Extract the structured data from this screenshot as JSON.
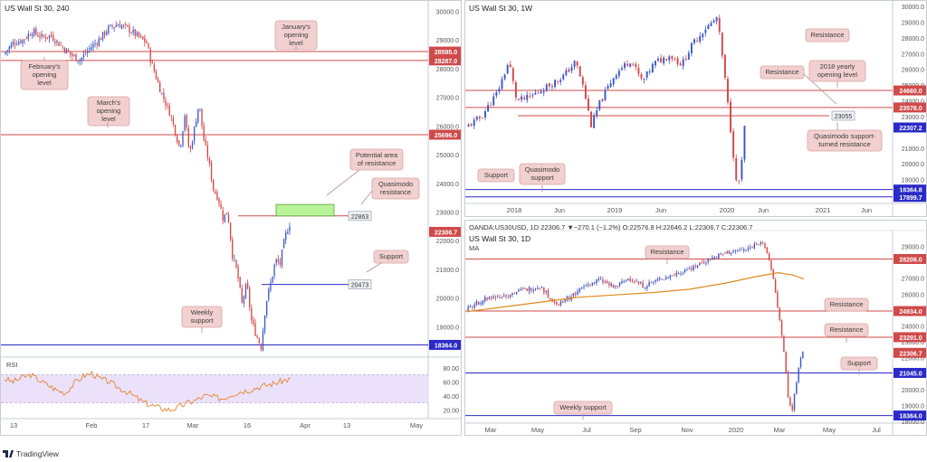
{
  "colors": {
    "candle_up": "#3a57c9",
    "candle_down": "#d64545",
    "resistance_line": "#d04a4a",
    "support_line": "#2a2ac8",
    "callout_bg": "#f2d0d0",
    "callout_border": "#d8a4a4",
    "green_zone": "#b8f39a",
    "rsi_line": "#e3852e",
    "rsi_band": "#ece1fb",
    "ma_line": "#e08a1e"
  },
  "panels": {
    "left": {
      "title": "US Wall St 30, 240",
      "indicator": "RSI",
      "x_labels": [
        "13",
        "Feb",
        "17",
        "Mar",
        "16",
        "Apr",
        "13",
        "May"
      ],
      "y_ticks": [
        "30000.0",
        "29000.0",
        "28000.0",
        "27000.0",
        "26000.0",
        "25000.0",
        "24000.0",
        "23000.0",
        "22000.0",
        "21000.0",
        "20000.0",
        "19000.0"
      ],
      "price_tags": [
        "28595.0",
        "28287.0",
        "25696.0",
        "22306.7",
        "18364.0"
      ],
      "rsi_ticks": [
        "80.00",
        "60.00",
        "40.00",
        "20.00"
      ],
      "callouts": [
        "January's opening level",
        "February's opening level",
        "March's opening level",
        "Potential area of resistance",
        "Quasimodo resistance",
        "Support",
        "Weekly support"
      ],
      "boxes": [
        "22863",
        "20473"
      ]
    },
    "weekly": {
      "title": "US Wall St 30, 1W",
      "x_labels": [
        "2018",
        "Jun",
        "2019",
        "Jun",
        "2020",
        "Jun",
        "2021",
        "Jun"
      ],
      "y_ticks": [
        "30000.0",
        "29000.0",
        "28000.0",
        "27000.0",
        "26000.0",
        "25000.0",
        "24000.0",
        "23000.0",
        "21000.0",
        "20000.0",
        "19000.0"
      ],
      "price_tags": [
        "24660.0",
        "23578.0",
        "22307.2",
        "18364.8",
        "17899.7"
      ],
      "callouts": [
        "Resistance",
        "Resistance",
        "2018 yearly opening level",
        "Quasimodo support-turned resistance",
        "Support",
        "Quasimodo support"
      ],
      "boxes": [
        "23055"
      ]
    },
    "daily": {
      "info": "OANDA:US30USD, 1D  22306.7  ▼−270.1 (−1.2%)  O:22576.8  H:22646.2  L:22306.7  C:22306.7",
      "title": "US Wall St 30, 1D",
      "indicator": "MA",
      "x_labels": [
        "Mar",
        "May",
        "Jul",
        "Sep",
        "Nov",
        "2020",
        "Mar",
        "May",
        "Jul"
      ],
      "y_ticks": [
        "29000.0",
        "27000.0",
        "26000.0",
        "25000.0",
        "24000.0",
        "23000.0",
        "22000.0",
        "20000.0",
        "19000.0",
        "18000.0"
      ],
      "price_tags": [
        "28208.0",
        "24934.0",
        "23291.0",
        "22306.7",
        "21045.0",
        "18364.0"
      ],
      "callouts": [
        "Resistance",
        "Resistance",
        "Resistance",
        "Support",
        "Weekly support"
      ]
    }
  },
  "brand": "TradingView",
  "chart_data": [
    {
      "type": "candlestick",
      "title": "US Wall St 30, 240",
      "ylim": [
        18000,
        30300
      ],
      "x_ticks": [
        "13",
        "Feb",
        "17",
        "Mar",
        "16",
        "Apr",
        "13",
        "May"
      ],
      "levels": [
        {
          "label": "January's opening level",
          "value": 28595.0,
          "kind": "resistance"
        },
        {
          "label": "February's opening level",
          "value": 28287.0,
          "kind": "resistance"
        },
        {
          "label": "March's opening level",
          "value": 25696.0,
          "kind": "resistance"
        },
        {
          "label": "Quasimodo resistance",
          "value": 22863,
          "kind": "resistance"
        },
        {
          "label": "Support",
          "value": 20473,
          "kind": "support"
        },
        {
          "label": "Weekly support",
          "value": 18364.0,
          "kind": "support"
        }
      ],
      "zone": {
        "label": "Potential area of resistance",
        "low": 22863,
        "high": 23200
      },
      "last_price": 22306.7,
      "path": [
        {
          "x": 0,
          "y": 28500
        },
        {
          "x": 2,
          "y": 28900
        },
        {
          "x": 4,
          "y": 29000
        },
        {
          "x": 6,
          "y": 29300
        },
        {
          "x": 8,
          "y": 29100
        },
        {
          "x": 10,
          "y": 29150
        },
        {
          "x": 12,
          "y": 28800
        },
        {
          "x": 14,
          "y": 28500
        },
        {
          "x": 16,
          "y": 28300
        },
        {
          "x": 18,
          "y": 28700
        },
        {
          "x": 20,
          "y": 29000
        },
        {
          "x": 22,
          "y": 29400
        },
        {
          "x": 24,
          "y": 29550
        },
        {
          "x": 26,
          "y": 29400
        },
        {
          "x": 28,
          "y": 29150
        },
        {
          "x": 30,
          "y": 28900
        },
        {
          "x": 31,
          "y": 28200
        },
        {
          "x": 33,
          "y": 27200
        },
        {
          "x": 35,
          "y": 26400
        },
        {
          "x": 37,
          "y": 25200
        },
        {
          "x": 38,
          "y": 26400
        },
        {
          "x": 39,
          "y": 25000
        },
        {
          "x": 41,
          "y": 26800
        },
        {
          "x": 42,
          "y": 25500
        },
        {
          "x": 43,
          "y": 24800
        },
        {
          "x": 44,
          "y": 23800
        },
        {
          "x": 45,
          "y": 23500
        },
        {
          "x": 46,
          "y": 22800
        },
        {
          "x": 47,
          "y": 23000
        },
        {
          "x": 48,
          "y": 21500
        },
        {
          "x": 49,
          "y": 20900
        },
        {
          "x": 50,
          "y": 19800
        },
        {
          "x": 51,
          "y": 20500
        },
        {
          "x": 52,
          "y": 19200
        },
        {
          "x": 53,
          "y": 18700
        },
        {
          "x": 54,
          "y": 18300
        },
        {
          "x": 55,
          "y": 19800
        },
        {
          "x": 56,
          "y": 20500
        },
        {
          "x": 57,
          "y": 21300
        },
        {
          "x": 58,
          "y": 21200
        },
        {
          "x": 59,
          "y": 22100
        },
        {
          "x": 60,
          "y": 22600
        }
      ],
      "rsi": {
        "ylim": [
          10,
          90
        ],
        "values": [
          64,
          60,
          66,
          70,
          62,
          55,
          48,
          44,
          58,
          68,
          72,
          64,
          60,
          52,
          46,
          38,
          30,
          26,
          22,
          20,
          24,
          30,
          34,
          40,
          38,
          36,
          42,
          46,
          48,
          52,
          55,
          58,
          62,
          64
        ]
      }
    },
    {
      "type": "candlestick",
      "title": "US Wall St 30, 1W",
      "ylim": [
        17600,
        30000
      ],
      "x_ticks": [
        "2018",
        "Jun",
        "2019",
        "Jun",
        "2020",
        "Jun",
        "2021",
        "Jun"
      ],
      "levels": [
        {
          "label": "Resistance",
          "value": 24660.0,
          "kind": "resistance"
        },
        {
          "label": "Resistance",
          "value": 23578.0,
          "kind": "resistance"
        },
        {
          "label": "2018 yearly opening level",
          "value": 23055,
          "kind": "resistance"
        },
        {
          "label": "Support",
          "value": 18364.8,
          "kind": "support"
        },
        {
          "label": "Quasimodo support",
          "value": 17899.7,
          "kind": "support"
        }
      ],
      "last_price": 22307.2,
      "path": [
        {
          "x": 0,
          "y": 22300
        },
        {
          "x": 4,
          "y": 23000
        },
        {
          "x": 8,
          "y": 24500
        },
        {
          "x": 11,
          "y": 26500
        },
        {
          "x": 13,
          "y": 24000
        },
        {
          "x": 16,
          "y": 24200
        },
        {
          "x": 20,
          "y": 24800
        },
        {
          "x": 25,
          "y": 25600
        },
        {
          "x": 28,
          "y": 26500
        },
        {
          "x": 30,
          "y": 24800
        },
        {
          "x": 32,
          "y": 22400
        },
        {
          "x": 34,
          "y": 23800
        },
        {
          "x": 38,
          "y": 25700
        },
        {
          "x": 42,
          "y": 26600
        },
        {
          "x": 45,
          "y": 25200
        },
        {
          "x": 48,
          "y": 26400
        },
        {
          "x": 52,
          "y": 26900
        },
        {
          "x": 55,
          "y": 26300
        },
        {
          "x": 58,
          "y": 27700
        },
        {
          "x": 61,
          "y": 28600
        },
        {
          "x": 63,
          "y": 29000
        },
        {
          "x": 64,
          "y": 29300
        },
        {
          "x": 65,
          "y": 27500
        },
        {
          "x": 66,
          "y": 25400
        },
        {
          "x": 67,
          "y": 23200
        },
        {
          "x": 68,
          "y": 21000
        },
        {
          "x": 69,
          "y": 18500
        },
        {
          "x": 70,
          "y": 19200
        },
        {
          "x": 71,
          "y": 22300
        }
      ]
    },
    {
      "type": "candlestick",
      "title": "US Wall St 30, 1D",
      "ylim": [
        18000,
        29600
      ],
      "x_ticks": [
        "Mar",
        "May",
        "Jul",
        "Sep",
        "Nov",
        "2020",
        "Mar",
        "May",
        "Jul"
      ],
      "levels": [
        {
          "label": "Resistance",
          "value": 28208.0,
          "kind": "resistance"
        },
        {
          "label": "Resistance",
          "value": 24934.0,
          "kind": "resistance"
        },
        {
          "label": "Resistance",
          "value": 23291.0,
          "kind": "resistance"
        },
        {
          "label": "Support",
          "value": 21045.0,
          "kind": "support"
        },
        {
          "label": "Weekly support",
          "value": 18364.0,
          "kind": "support"
        }
      ],
      "last_price": 22306.7,
      "path": [
        {
          "x": 0,
          "y": 25000
        },
        {
          "x": 5,
          "y": 25700
        },
        {
          "x": 10,
          "y": 25900
        },
        {
          "x": 15,
          "y": 26200
        },
        {
          "x": 20,
          "y": 26500
        },
        {
          "x": 24,
          "y": 25400
        },
        {
          "x": 28,
          "y": 25800
        },
        {
          "x": 32,
          "y": 26500
        },
        {
          "x": 36,
          "y": 26900
        },
        {
          "x": 40,
          "y": 26400
        },
        {
          "x": 44,
          "y": 27000
        },
        {
          "x": 48,
          "y": 26500
        },
        {
          "x": 52,
          "y": 26900
        },
        {
          "x": 56,
          "y": 27200
        },
        {
          "x": 60,
          "y": 27600
        },
        {
          "x": 64,
          "y": 28000
        },
        {
          "x": 68,
          "y": 28400
        },
        {
          "x": 72,
          "y": 28700
        },
        {
          "x": 76,
          "y": 28800
        },
        {
          "x": 78,
          "y": 29100
        },
        {
          "x": 80,
          "y": 29400
        },
        {
          "x": 81,
          "y": 28600
        },
        {
          "x": 82,
          "y": 28100
        },
        {
          "x": 83,
          "y": 27000
        },
        {
          "x": 84,
          "y": 25500
        },
        {
          "x": 85,
          "y": 23900
        },
        {
          "x": 86,
          "y": 22000
        },
        {
          "x": 87,
          "y": 19600
        },
        {
          "x": 88,
          "y": 18600
        },
        {
          "x": 89,
          "y": 20200
        },
        {
          "x": 90,
          "y": 21500
        },
        {
          "x": 91,
          "y": 22306.7
        }
      ],
      "ma": [
        {
          "x": 0,
          "y": 24900
        },
        {
          "x": 10,
          "y": 25200
        },
        {
          "x": 20,
          "y": 25500
        },
        {
          "x": 30,
          "y": 25800
        },
        {
          "x": 40,
          "y": 25950
        },
        {
          "x": 50,
          "y": 26100
        },
        {
          "x": 60,
          "y": 26300
        },
        {
          "x": 70,
          "y": 26700
        },
        {
          "x": 78,
          "y": 27100
        },
        {
          "x": 84,
          "y": 27350
        },
        {
          "x": 88,
          "y": 27200
        },
        {
          "x": 91,
          "y": 26950
        }
      ]
    }
  ]
}
